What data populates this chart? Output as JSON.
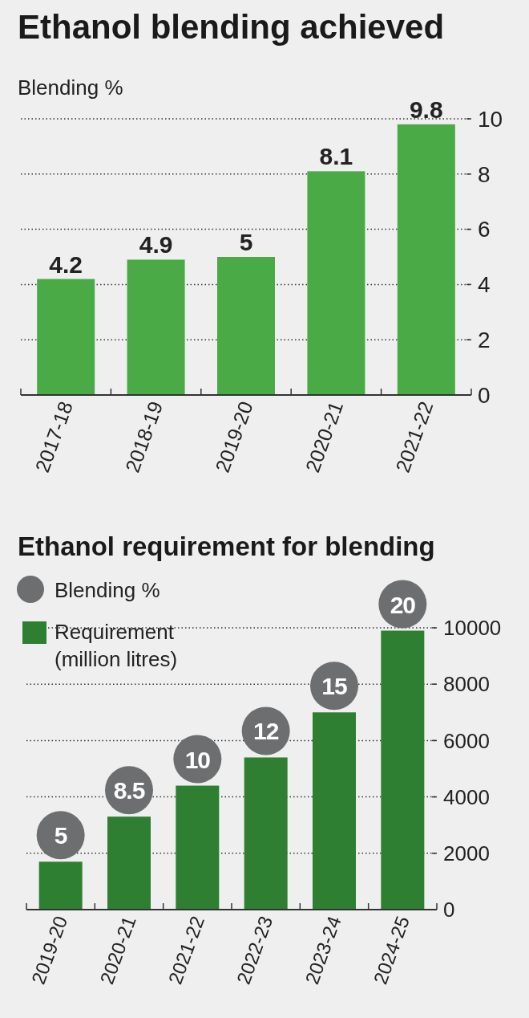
{
  "chart_data": [
    {
      "type": "bar",
      "title": "Ethanol blending achieved",
      "ylabel": "Blending %",
      "categories": [
        "2017-18",
        "2018-19",
        "2019-20",
        "2020-21",
        "2021-22"
      ],
      "values": [
        4.2,
        4.9,
        5,
        8.1,
        9.8
      ],
      "color": "#4aaa45",
      "ylim": [
        0,
        10
      ],
      "yticks": [
        0,
        2,
        4,
        6,
        8,
        10
      ],
      "grid": "y",
      "data_labels": true
    },
    {
      "type": "bar",
      "title": "Ethanol requirement for blending",
      "categories": [
        "2019-20",
        "2020-21",
        "2021-22",
        "2022-23",
        "2023-24",
        "2024-25"
      ],
      "ylim": [
        0,
        10000
      ],
      "yticks": [
        0,
        2000,
        4000,
        6000,
        8000,
        10000
      ],
      "grid": "y",
      "legend": "top left",
      "series": [
        {
          "name": "Blending %",
          "type": "scatter",
          "color": "#6d6e70",
          "values": [
            null,
            null,
            null,
            null,
            null,
            null
          ],
          "value_labels": [
            "5",
            "8.5",
            "10",
            "12",
            "15",
            "20"
          ]
        },
        {
          "name": "Requirement (million litres)",
          "color": "#2e7f32",
          "values": [
            1700,
            3300,
            4400,
            5400,
            7000,
            9900
          ]
        }
      ]
    }
  ]
}
